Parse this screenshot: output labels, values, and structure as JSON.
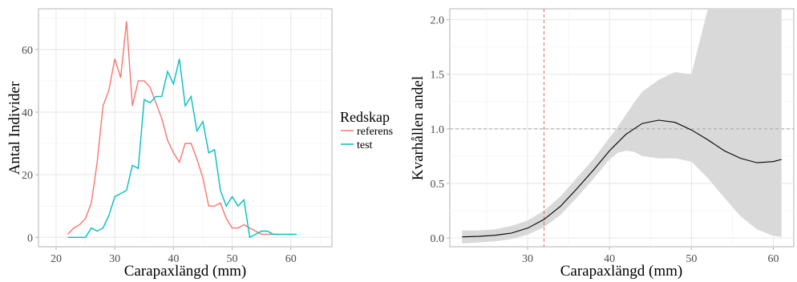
{
  "chart_data": [
    {
      "type": "line",
      "xlabel": "Carapaxlängd (mm)",
      "ylabel": "Antal Individer",
      "xlim": [
        17,
        67
      ],
      "ylim": [
        -3,
        73
      ],
      "x_ticks": [
        20,
        30,
        40,
        50,
        60
      ],
      "y_ticks": [
        0,
        20,
        40,
        60
      ],
      "grid": true,
      "legend": {
        "title": "Redskap",
        "placement": "right",
        "entries": [
          "referens",
          "test"
        ]
      },
      "series": [
        {
          "name": "referens",
          "color": "#F8766D",
          "x": [
            22,
            23,
            24,
            25,
            26,
            27,
            28,
            29,
            30,
            31,
            32,
            33,
            34,
            35,
            36,
            37,
            38,
            39,
            40,
            41,
            42,
            43,
            44,
            45,
            46,
            47,
            48,
            49,
            50,
            51,
            52,
            53,
            54,
            55,
            56,
            57,
            58
          ],
          "y": [
            1,
            3,
            4,
            6,
            11,
            24,
            42,
            47,
            57,
            51,
            69,
            42,
            50,
            50,
            48,
            43,
            38,
            31,
            27,
            24,
            30,
            30,
            25,
            19,
            10,
            10,
            11,
            6,
            3,
            3,
            4,
            3,
            2,
            1,
            1,
            1,
            1
          ]
        },
        {
          "name": "test",
          "color": "#00BFC4",
          "x": [
            22,
            23,
            24,
            25,
            26,
            27,
            28,
            29,
            30,
            31,
            32,
            33,
            34,
            35,
            36,
            37,
            38,
            39,
            40,
            41,
            42,
            43,
            44,
            45,
            46,
            47,
            48,
            49,
            50,
            51,
            52,
            53,
            54,
            55,
            56,
            57,
            58,
            59,
            60,
            61
          ],
          "y": [
            0,
            0,
            0,
            0,
            3,
            2,
            3,
            7,
            13,
            14,
            15,
            23,
            22,
            44,
            43,
            45,
            45,
            53,
            49,
            57,
            42,
            45,
            34,
            37,
            27,
            28,
            15,
            10,
            13,
            10,
            12,
            0,
            1,
            2,
            2,
            1,
            1,
            1,
            1,
            1
          ]
        }
      ]
    },
    {
      "type": "line",
      "xlabel": "Carapaxlängd (mm)",
      "ylabel": "Kvarhållen andel",
      "xlim": [
        20.5,
        62.5
      ],
      "ylim": [
        -0.08,
        2.1
      ],
      "x_ticks": [
        30,
        40,
        50,
        60
      ],
      "y_ticks": [
        "0.0",
        "0.5",
        "1.0",
        "1.5",
        "2.0"
      ],
      "grid": true,
      "hline": 1.0,
      "vline": 32,
      "series": [
        {
          "name": "",
          "color": "#000000",
          "x": [
            22,
            24,
            26,
            28,
            30,
            32,
            34,
            36,
            38,
            40,
            42,
            44,
            46,
            48,
            50,
            52,
            54,
            56,
            58,
            60,
            61
          ],
          "y": [
            0.01,
            0.015,
            0.025,
            0.045,
            0.09,
            0.17,
            0.29,
            0.45,
            0.62,
            0.8,
            0.95,
            1.05,
            1.08,
            1.06,
            0.99,
            0.9,
            0.8,
            0.73,
            0.69,
            0.7,
            0.72
          ]
        }
      ],
      "band": {
        "x": [
          22,
          24,
          26,
          28,
          30,
          32,
          34,
          36,
          38,
          40,
          41,
          42,
          43,
          44,
          46,
          48,
          50,
          52,
          54,
          56,
          58,
          60,
          61
        ],
        "lower": [
          -0.05,
          -0.04,
          -0.03,
          -0.01,
          0.03,
          0.1,
          0.21,
          0.37,
          0.54,
          0.72,
          0.78,
          0.8,
          0.79,
          0.75,
          0.73,
          0.73,
          0.7,
          0.55,
          0.37,
          0.2,
          0.08,
          0.02,
          0.01
        ],
        "upper": [
          0.07,
          0.07,
          0.08,
          0.11,
          0.16,
          0.25,
          0.38,
          0.55,
          0.72,
          0.92,
          1.02,
          1.13,
          1.24,
          1.34,
          1.45,
          1.52,
          1.5,
          2.1,
          2.1,
          2.1,
          2.1,
          2.1,
          2.1
        ]
      }
    }
  ]
}
